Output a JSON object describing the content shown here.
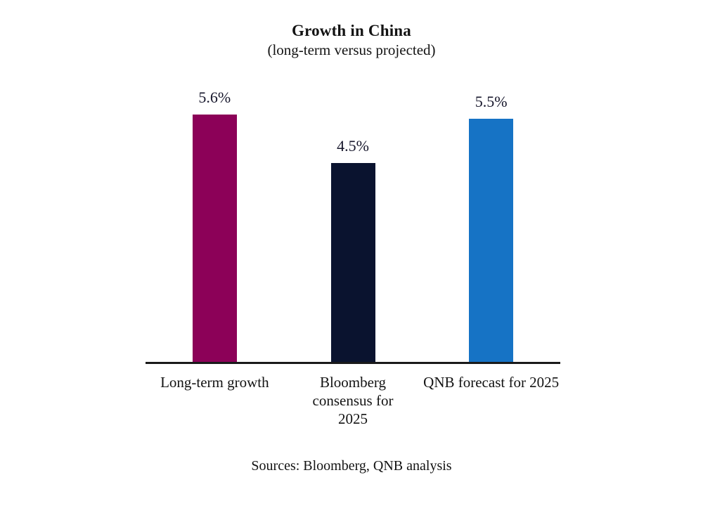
{
  "chart_data": {
    "type": "bar",
    "title": "Growth in China",
    "subtitle": "(long-term versus projected)",
    "categories": [
      "Long-term growth",
      "Bloomberg consensus for 2025",
      "QNB forecast for 2025"
    ],
    "values": [
      5.6,
      4.5,
      5.5
    ],
    "value_labels": [
      "5.6%",
      "4.5%",
      "5.5%"
    ],
    "unit": "%",
    "bar_colors": [
      "#8C0158",
      "#0A132F",
      "#1673C5"
    ],
    "ylim": [
      0,
      6.3
    ],
    "grid": false,
    "legend": "none",
    "y_axis_shown": false,
    "axis_color": "#1a1a1a",
    "source": "Sources: Bloomberg, QNB analysis"
  }
}
